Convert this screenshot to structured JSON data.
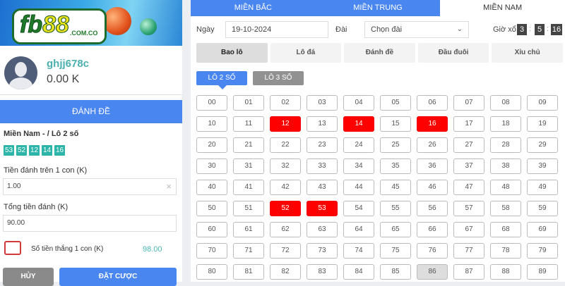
{
  "brand": {
    "logo_text": "fb88",
    "logo_domain": ".COM.CO"
  },
  "user": {
    "username": "ghjj678c",
    "balance": "0.00 K"
  },
  "bet_panel": {
    "header": "ĐÁNH ĐỀ",
    "region": "Miền Nam - / Lô 2 số",
    "selected_numbers": [
      "53",
      "52",
      "12",
      "14",
      "16"
    ],
    "stake_label": "Tiền đánh trên 1 con (K)",
    "stake_value": "1.00",
    "total_label": "Tổng tiền đánh (K)",
    "total_value": "90.00",
    "win_label": "Số tiền thắng 1 con (K)",
    "win_value": "98.00",
    "cancel_label": "HỦY",
    "submit_label": "ĐẶT CƯỢC"
  },
  "region_tabs": [
    {
      "label": "MIỀN BẮC"
    },
    {
      "label": "MIỀN TRUNG"
    },
    {
      "label": "MIỀN NAM",
      "active": true
    }
  ],
  "filters": {
    "date_label": "Ngày",
    "date_value": "19-10-2024",
    "station_label": "Đài",
    "station_value": "Chọn đài",
    "draw_label": "Giờ xổ",
    "draw_time": [
      "3",
      "5",
      "16"
    ]
  },
  "bet_types": [
    {
      "label": "Bao lô",
      "active": true
    },
    {
      "label": "Lô đá"
    },
    {
      "label": "Đánh đề"
    },
    {
      "label": "Đầu đuôi"
    },
    {
      "label": "Xỉu chủ"
    }
  ],
  "lo_types": [
    {
      "label": "LÔ 2 SỐ",
      "active": true
    },
    {
      "label": "LÔ 3 SỐ"
    }
  ],
  "grid": {
    "selected": [
      "12",
      "14",
      "16",
      "52",
      "53"
    ],
    "highlighted": [
      "86"
    ],
    "numbers": [
      "00",
      "01",
      "02",
      "03",
      "04",
      "05",
      "06",
      "07",
      "08",
      "09",
      "10",
      "11",
      "12",
      "13",
      "14",
      "15",
      "16",
      "17",
      "18",
      "19",
      "20",
      "21",
      "22",
      "23",
      "24",
      "25",
      "26",
      "27",
      "28",
      "29",
      "30",
      "31",
      "32",
      "33",
      "34",
      "35",
      "36",
      "37",
      "38",
      "39",
      "40",
      "41",
      "42",
      "43",
      "44",
      "45",
      "46",
      "47",
      "48",
      "49",
      "50",
      "51",
      "52",
      "53",
      "54",
      "55",
      "56",
      "57",
      "58",
      "59",
      "60",
      "61",
      "62",
      "63",
      "64",
      "65",
      "66",
      "67",
      "68",
      "69",
      "70",
      "71",
      "72",
      "73",
      "74",
      "75",
      "76",
      "77",
      "78",
      "79",
      "80",
      "81",
      "82",
      "83",
      "84",
      "85",
      "86",
      "87",
      "88",
      "89"
    ]
  },
  "colors": {
    "primary": "#4a86f0",
    "selected": "#ff0000",
    "accent": "#2cb5a8"
  }
}
